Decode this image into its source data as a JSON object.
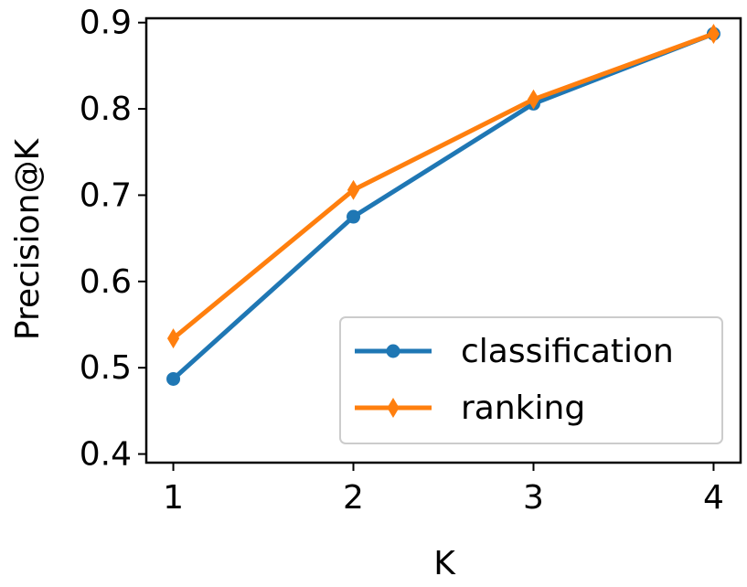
{
  "chart_data": {
    "type": "line",
    "x": [
      1,
      2,
      3,
      4
    ],
    "xticks": [
      "1",
      "2",
      "3",
      "4"
    ],
    "yticks": [
      "0.4",
      "0.5",
      "0.6",
      "0.7",
      "0.8",
      "0.9"
    ],
    "xlabel": "K",
    "ylabel": "Precision@K",
    "xlim": [
      0.85,
      4.15
    ],
    "ylim": [
      0.39,
      0.905
    ],
    "grid": false,
    "legend_position": "lower-right",
    "series": [
      {
        "name": "classification",
        "values": [
          0.487,
          0.675,
          0.806,
          0.887
        ],
        "color": "#1f77b4",
        "marker": "circle"
      },
      {
        "name": "ranking",
        "values": [
          0.534,
          0.706,
          0.811,
          0.887
        ],
        "color": "#ff7f0e",
        "marker": "diamond"
      }
    ]
  }
}
